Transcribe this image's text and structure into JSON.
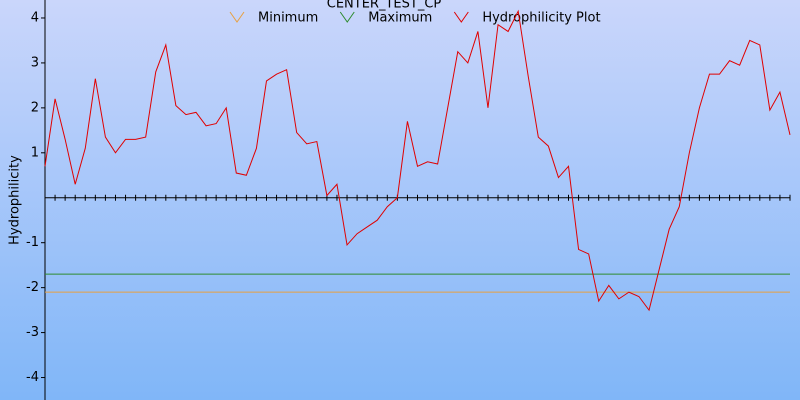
{
  "chart_data": {
    "type": "line",
    "title": "CENTER_TEST_CP",
    "y_label": "Hydrophilicity",
    "ylim": [
      -4.5,
      4.4
    ],
    "yticks": [
      -4,
      -3,
      -2,
      -1,
      1,
      2,
      3,
      4
    ],
    "series": [
      {
        "name": "Minimum",
        "color": "#e8a040",
        "value": -2.1
      },
      {
        "name": "Maximum",
        "color": "#2e8b2e",
        "value": -1.7
      },
      {
        "name": "Hydrophilicity Plot",
        "color": "#e00000",
        "values": [
          0.7,
          2.2,
          1.3,
          0.3,
          1.1,
          2.65,
          1.35,
          1.0,
          1.3,
          1.3,
          1.35,
          2.8,
          3.4,
          2.05,
          1.85,
          1.9,
          1.6,
          1.65,
          2.0,
          0.55,
          0.5,
          1.1,
          2.6,
          2.75,
          2.85,
          1.45,
          1.2,
          1.25,
          0.05,
          0.3,
          -1.05,
          -0.8,
          -0.65,
          -0.5,
          -0.2,
          0,
          1.7,
          0.7,
          0.8,
          0.75,
          2.0,
          3.25,
          3.0,
          3.7,
          2.0,
          3.85,
          3.7,
          4.15,
          2.7,
          1.35,
          1.15,
          0.45,
          0.7,
          -1.15,
          -1.25,
          -2.3,
          -1.95,
          -2.25,
          -2.1,
          -2.2,
          -2.5,
          -1.6,
          -0.7,
          -0.2,
          1.0,
          2.0,
          2.75,
          2.75,
          3.05,
          2.95,
          3.5,
          3.4,
          1.95,
          2.35,
          1.4
        ]
      }
    ]
  }
}
